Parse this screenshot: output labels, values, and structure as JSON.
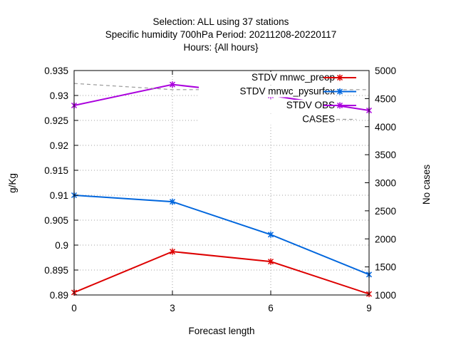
{
  "chart_data": {
    "type": "line",
    "title_lines": [
      "Selection: ALL using    37 stations",
      "Specific humidity 700hPa   Period: 20211208-20220117",
      "Hours: {All hours}"
    ],
    "xlabel": "Forecast length",
    "ylabel": "g/Kg",
    "y2label": "No cases",
    "x": [
      0,
      3,
      6,
      9
    ],
    "xticks": [
      0,
      3,
      6,
      9
    ],
    "xlim": [
      0,
      9
    ],
    "ylim": [
      0.89,
      0.935
    ],
    "yticks": [
      "0.89",
      "0.895",
      "0.9",
      "0.905",
      "0.91",
      "0.915",
      "0.92",
      "0.925",
      "0.93",
      "0.935"
    ],
    "y2lim": [
      1000,
      5000
    ],
    "y2ticks": [
      "1000",
      "1500",
      "2000",
      "2500",
      "3000",
      "3500",
      "4000",
      "4500",
      "5000"
    ],
    "grid": true,
    "legend_position": "top-right",
    "series": [
      {
        "name": "STDV mnwc_preop",
        "axis": "y",
        "color": "#dd0000",
        "marker": "x",
        "values": [
          0.8905,
          0.8987,
          0.8967,
          0.8902
        ]
      },
      {
        "name": "STDV mnwc_pysurfex",
        "axis": "y",
        "color": "#0066dd",
        "marker": "x",
        "values": [
          0.91,
          0.9087,
          0.9021,
          0.8941
        ]
      },
      {
        "name": "STDV OBS",
        "axis": "y",
        "color": "#aa00dd",
        "marker": "x",
        "values": [
          0.928,
          0.9322,
          0.93,
          0.927
        ]
      },
      {
        "name": "CASES",
        "axis": "y2",
        "color": "#999999",
        "marker": "none",
        "dashed": true,
        "values": [
          4770,
          4660,
          4660,
          4660
        ]
      }
    ]
  }
}
